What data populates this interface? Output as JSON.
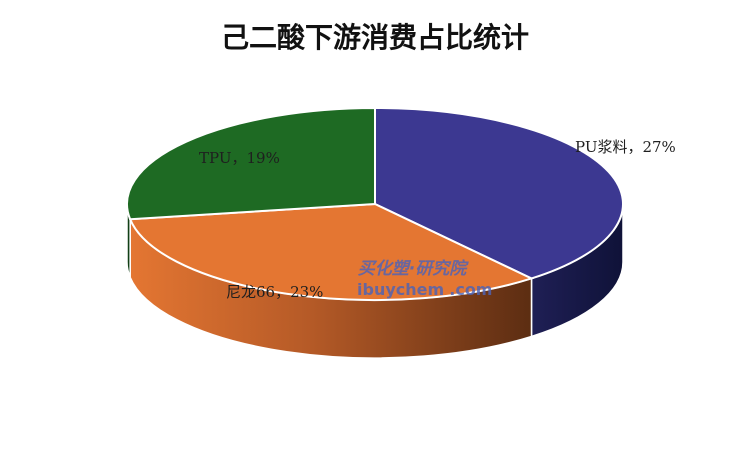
{
  "chart_data": {
    "type": "pie",
    "title": "己二酸下游消费占比统计",
    "slices": [
      {
        "label": "PU浆料",
        "value": 27,
        "color": "#3C3891"
      },
      {
        "label": "尼龙66",
        "value": 23,
        "color": "#E47632"
      },
      {
        "label": "TPU",
        "value": 19,
        "color": "#1E6A23"
      }
    ],
    "data_labels": [
      "PU浆料，27%",
      "尼龙66，23%",
      "TPU，19%"
    ],
    "style": "3d"
  },
  "watermark": {
    "cn": "买化塑·研究院",
    "en_prefix": "ibuychem",
    "en_suffix": ".com"
  }
}
